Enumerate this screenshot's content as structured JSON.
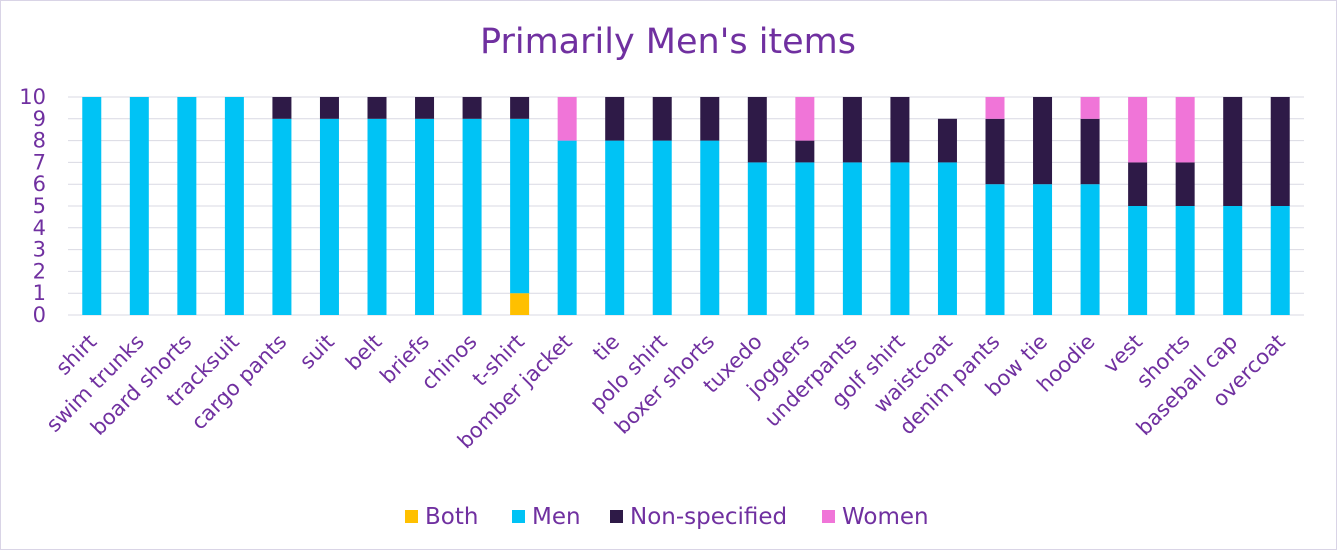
{
  "chart_data": {
    "type": "bar",
    "stacked": true,
    "title": "Primarily Men's items",
    "xlabel": "",
    "ylabel": "",
    "ylim": [
      0,
      10
    ],
    "yticks": [
      "0",
      "1",
      "2",
      "3",
      "4",
      "5",
      "6",
      "7",
      "8",
      "9",
      "10"
    ],
    "grid": true,
    "legend_position": "bottom",
    "categories": [
      "shirt",
      "swim trunks",
      "board shorts",
      "tracksuit",
      "cargo pants",
      "suit",
      "belt",
      "briefs",
      "chinos",
      "t-shirt",
      "bomber jacket",
      "tie",
      "polo shirt",
      "boxer shorts",
      "tuxedo",
      "joggers",
      "underpants",
      "golf shirt",
      "waistcoat",
      "denim pants",
      "bow tie",
      "hoodie",
      "vest",
      "shorts",
      "baseball cap",
      "overcoat"
    ],
    "series": [
      {
        "name": "Both",
        "color": "#ffc000",
        "values": [
          0,
          0,
          0,
          0,
          0,
          0,
          0,
          0,
          0,
          1,
          0,
          0,
          0,
          0,
          0,
          0,
          0,
          0,
          0,
          0,
          0,
          0,
          0,
          0,
          0,
          0
        ]
      },
      {
        "name": "Men",
        "color": "#00c3f5",
        "values": [
          10,
          10,
          10,
          10,
          9,
          9,
          9,
          9,
          9,
          8,
          8,
          8,
          8,
          8,
          7,
          7,
          7,
          7,
          7,
          6,
          6,
          6,
          5,
          5,
          5,
          5
        ]
      },
      {
        "name": "Non-specified",
        "color": "#2e1a47",
        "values": [
          0,
          0,
          0,
          0,
          1,
          1,
          1,
          1,
          1,
          1,
          0,
          2,
          2,
          2,
          3,
          1,
          3,
          3,
          2,
          3,
          4,
          3,
          2,
          2,
          5,
          5
        ]
      },
      {
        "name": "Women",
        "color": "#f075d8",
        "values": [
          0,
          0,
          0,
          0,
          0,
          0,
          0,
          0,
          0,
          0,
          2,
          0,
          0,
          0,
          0,
          2,
          0,
          0,
          0,
          1,
          0,
          1,
          3,
          3,
          0,
          0
        ]
      }
    ]
  }
}
